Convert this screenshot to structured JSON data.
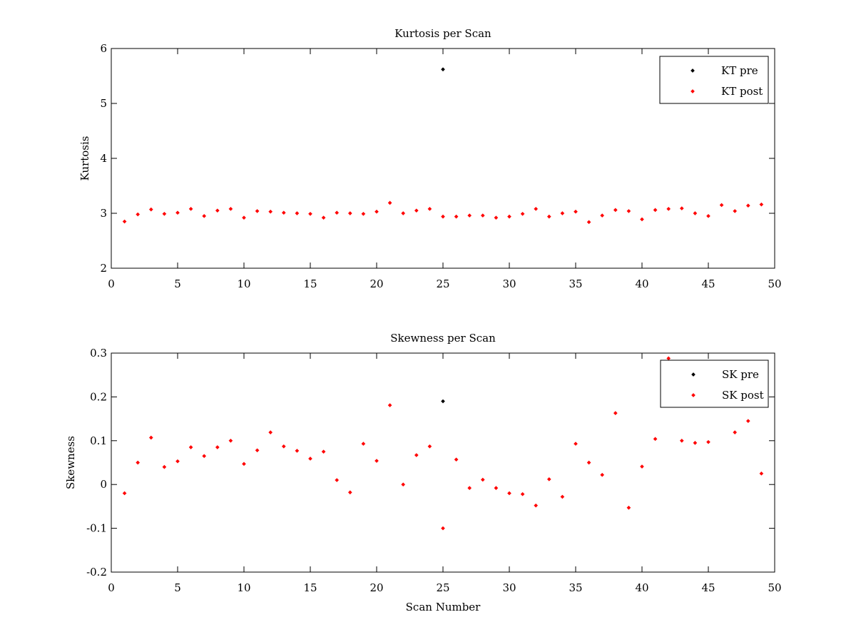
{
  "colors": {
    "pre": "#000000",
    "post": "#ff0000",
    "axis": "#000000",
    "background": "#ffffff"
  },
  "chart_data": [
    {
      "type": "scatter",
      "title": "Kurtosis per Scan",
      "xlabel": "",
      "ylabel": "Kurtosis",
      "xlim": [
        0,
        50
      ],
      "ylim": [
        2,
        6
      ],
      "xticks": [
        0,
        5,
        10,
        15,
        20,
        25,
        30,
        35,
        40,
        45,
        50
      ],
      "yticks": [
        2,
        3,
        4,
        5,
        6
      ],
      "grid": false,
      "legend_position": "top-right",
      "series": [
        {
          "name": "KT pre",
          "color": "#000000",
          "points": [
            [
              25,
              5.62
            ]
          ]
        },
        {
          "name": "KT post",
          "color": "#ff0000",
          "points": [
            [
              1,
              2.85
            ],
            [
              2,
              2.98
            ],
            [
              3,
              3.07
            ],
            [
              4,
              2.99
            ],
            [
              5,
              3.01
            ],
            [
              6,
              3.08
            ],
            [
              7,
              2.95
            ],
            [
              8,
              3.05
            ],
            [
              9,
              3.08
            ],
            [
              10,
              2.92
            ],
            [
              11,
              3.04
            ],
            [
              12,
              3.03
            ],
            [
              13,
              3.01
            ],
            [
              14,
              3.0
            ],
            [
              15,
              2.99
            ],
            [
              16,
              2.92
            ],
            [
              17,
              3.01
            ],
            [
              18,
              3.0
            ],
            [
              19,
              2.99
            ],
            [
              20,
              3.03
            ],
            [
              21,
              3.19
            ],
            [
              22,
              3.0
            ],
            [
              23,
              3.05
            ],
            [
              24,
              3.08
            ],
            [
              25,
              2.94
            ],
            [
              26,
              2.94
            ],
            [
              27,
              2.96
            ],
            [
              28,
              2.96
            ],
            [
              29,
              2.92
            ],
            [
              30,
              2.94
            ],
            [
              31,
              2.99
            ],
            [
              32,
              3.08
            ],
            [
              33,
              2.94
            ],
            [
              34,
              3.0
            ],
            [
              35,
              3.03
            ],
            [
              36,
              2.84
            ],
            [
              37,
              2.96
            ],
            [
              38,
              3.06
            ],
            [
              39,
              3.04
            ],
            [
              40,
              2.89
            ],
            [
              41,
              3.06
            ],
            [
              42,
              3.08
            ],
            [
              43,
              3.09
            ],
            [
              44,
              3.0
            ],
            [
              45,
              2.95
            ],
            [
              46,
              3.15
            ],
            [
              47,
              3.04
            ],
            [
              48,
              3.14
            ],
            [
              49,
              3.16
            ]
          ]
        }
      ]
    },
    {
      "type": "scatter",
      "title": "Skewness per Scan",
      "xlabel": "Scan Number",
      "ylabel": "Skewness",
      "xlim": [
        0,
        50
      ],
      "ylim": [
        -0.2,
        0.3
      ],
      "xticks": [
        0,
        5,
        10,
        15,
        20,
        25,
        30,
        35,
        40,
        45,
        50
      ],
      "yticks": [
        -0.2,
        -0.1,
        0,
        0.1,
        0.2,
        0.3
      ],
      "grid": false,
      "legend_position": "top-right",
      "series": [
        {
          "name": "SK pre",
          "color": "#000000",
          "points": [
            [
              25,
              0.19
            ]
          ]
        },
        {
          "name": "SK post",
          "color": "#ff0000",
          "points": [
            [
              1,
              -0.02
            ],
            [
              2,
              0.05
            ],
            [
              3,
              0.107
            ],
            [
              4,
              0.04
            ],
            [
              5,
              0.053
            ],
            [
              6,
              0.085
            ],
            [
              7,
              0.065
            ],
            [
              8,
              0.085
            ],
            [
              9,
              0.1
            ],
            [
              10,
              0.047
            ],
            [
              11,
              0.078
            ],
            [
              12,
              0.119
            ],
            [
              13,
              0.087
            ],
            [
              14,
              0.077
            ],
            [
              15,
              0.059
            ],
            [
              16,
              0.075
            ],
            [
              17,
              0.01
            ],
            [
              18,
              -0.018
            ],
            [
              19,
              0.093
            ],
            [
              20,
              0.054
            ],
            [
              21,
              0.181
            ],
            [
              22,
              0.0
            ],
            [
              23,
              0.067
            ],
            [
              24,
              0.087
            ],
            [
              25,
              -0.1
            ],
            [
              26,
              0.057
            ],
            [
              27,
              -0.008
            ],
            [
              28,
              0.011
            ],
            [
              29,
              -0.008
            ],
            [
              30,
              -0.02
            ],
            [
              31,
              -0.022
            ],
            [
              32,
              -0.048
            ],
            [
              33,
              0.012
            ],
            [
              34,
              -0.028
            ],
            [
              35,
              0.093
            ],
            [
              36,
              0.05
            ],
            [
              37,
              0.022
            ],
            [
              38,
              0.163
            ],
            [
              39,
              -0.053
            ],
            [
              40,
              0.041
            ],
            [
              41,
              0.104
            ],
            [
              42,
              0.288
            ],
            [
              43,
              0.1
            ],
            [
              44,
              0.095
            ],
            [
              45,
              0.097
            ],
            [
              47,
              0.119
            ],
            [
              48,
              0.145
            ],
            [
              49,
              0.025
            ]
          ]
        }
      ]
    }
  ]
}
